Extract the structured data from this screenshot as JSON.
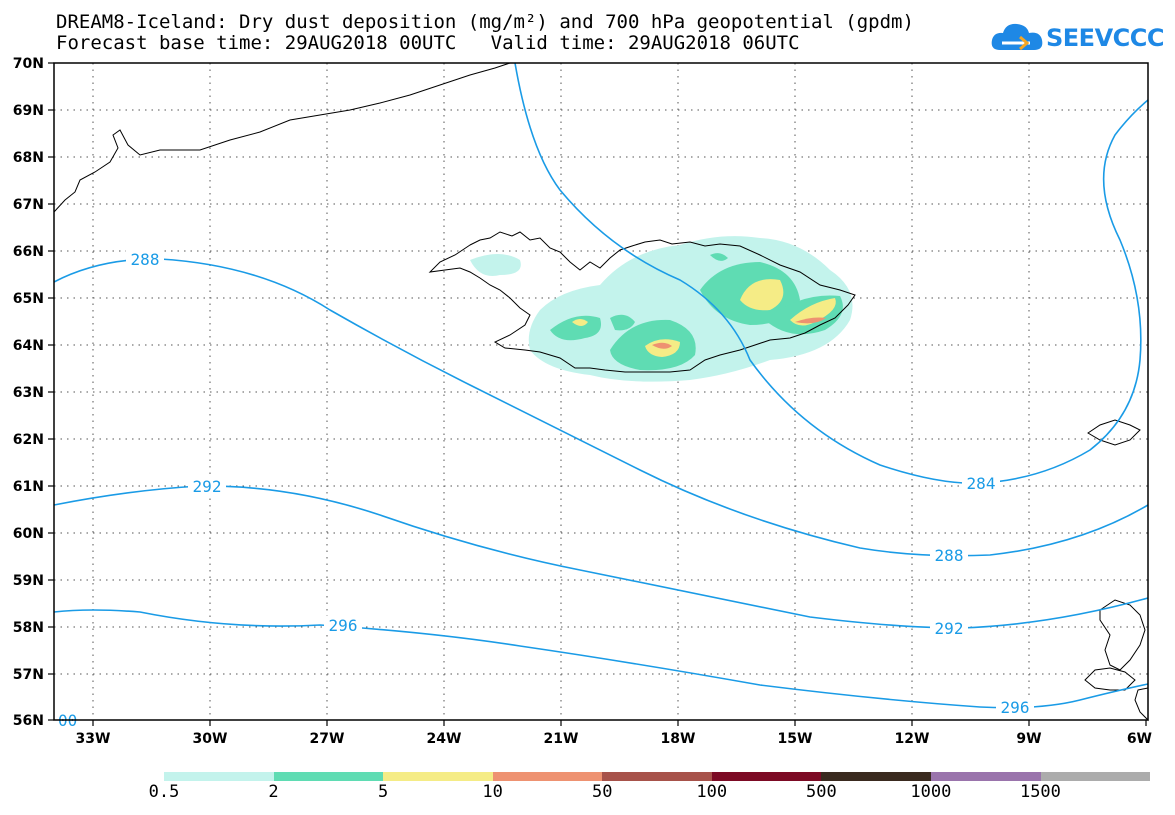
{
  "title": {
    "line1": "DREAM8-Iceland: Dry dust deposition (mg/m²) and 700 hPa geopotential (gpdm)",
    "line2": "Forecast base time: 29AUG2018 00UTC   Valid time: 29AUG2018 06UTC"
  },
  "logo": {
    "text": "SEEVCCC",
    "icon": "cloud-icon",
    "color": "#1e88e5"
  },
  "map": {
    "lat_labels": [
      "70N",
      "69N",
      "68N",
      "67N",
      "66N",
      "65N",
      "64N",
      "63N",
      "62N",
      "61N",
      "60N",
      "59N",
      "58N",
      "57N",
      "56N"
    ],
    "lon_labels": [
      "33W",
      "30W",
      "27W",
      "24W",
      "21W",
      "18W",
      "15W",
      "12W",
      "9W",
      "6W"
    ],
    "contour_color": "#1a9be6",
    "contours": [
      {
        "value": "288",
        "labels": [
          "288",
          "288"
        ]
      },
      {
        "value": "284",
        "labels": [
          "284"
        ]
      },
      {
        "value": "292",
        "labels": [
          "292",
          "292"
        ]
      },
      {
        "value": "296",
        "labels": [
          "296",
          "296"
        ]
      }
    ],
    "corner_label": "00"
  },
  "colorbar": {
    "colors": [
      "#c3f3ec",
      "#5fdcb3",
      "#f5ec86",
      "#ee9271",
      "#a7524a",
      "#7c0a24",
      "#3a2a1f",
      "#9a74ac",
      "#acacac"
    ],
    "labels": [
      "0.5",
      "2",
      "5",
      "10",
      "50",
      "100",
      "500",
      "1000",
      "1500"
    ]
  }
}
